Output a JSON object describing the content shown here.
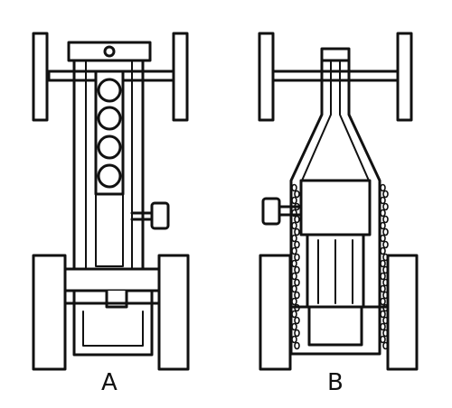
{
  "figure": {
    "label_a": "A",
    "label_b": "B"
  },
  "colors": {
    "ink": "#111111",
    "background": "#ffffff"
  }
}
